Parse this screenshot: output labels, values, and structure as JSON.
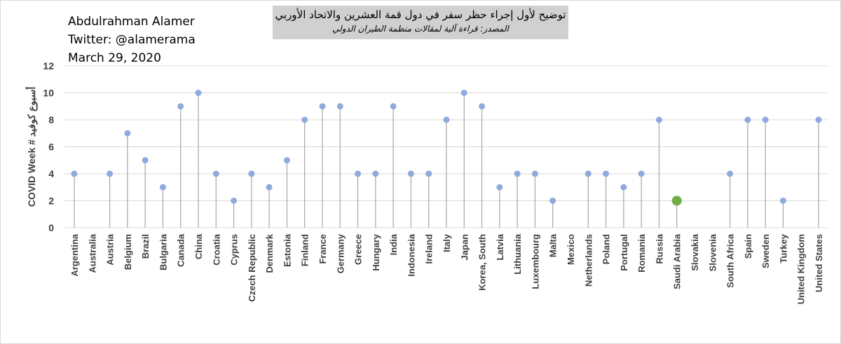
{
  "credit": {
    "author": "Abdulrahman Alamer",
    "twitter": "Twitter: @alamerama",
    "date": "March 29, 2020"
  },
  "title_box": {
    "main": "توضيح لأول إجراء حظر سفر في دول قمة العشرين والاتحاد الأوربي",
    "sub": "المصدر: قراءة آلية لمقالات منظمة الطيران الدولي"
  },
  "colors": {
    "point": "#8faadc",
    "highlight": "#70ad47",
    "stem": "#a6a6a6",
    "grid": "#d9d9d9"
  },
  "chart_data": {
    "type": "scatter",
    "title": "",
    "ylabel": "COVID Week # أسبوع كوفيد",
    "xlabel": "",
    "ylim": [
      0,
      12
    ],
    "yticks": [
      0,
      2,
      4,
      6,
      8,
      10,
      12
    ],
    "grid": true,
    "highlight_category": "Saudi Arabia",
    "categories": [
      "Argentina",
      "Australia",
      "Austria",
      "Belgium",
      "Brazil",
      "Bulgaria",
      "Canada",
      "China",
      "Croatia",
      "Cyprus",
      "Czech Republic",
      "Denmark",
      "Estonia",
      "Finland",
      "France",
      "Germany",
      "Greece",
      "Hungary",
      "India",
      "Indonesia",
      "Ireland",
      "Italy",
      "Japan",
      "Korea, South",
      "Latvia",
      "Lithuania",
      "Luxembourg",
      "Malta",
      "Mexico",
      "Netherlands",
      "Poland",
      "Portugal",
      "Romania",
      "Russia",
      "Saudi Arabia",
      "Slovakia",
      "Slovenia",
      "South Africa",
      "Spain",
      "Sweden",
      "Turkey",
      "United Kingdom",
      "United States"
    ],
    "values": [
      4,
      null,
      4,
      7,
      5,
      3,
      9,
      10,
      4,
      2,
      4,
      3,
      5,
      8,
      9,
      9,
      4,
      4,
      9,
      4,
      4,
      8,
      10,
      9,
      3,
      4,
      4,
      2,
      null,
      4,
      4,
      3,
      4,
      8,
      2,
      null,
      null,
      4,
      8,
      8,
      2,
      null,
      8
    ]
  }
}
